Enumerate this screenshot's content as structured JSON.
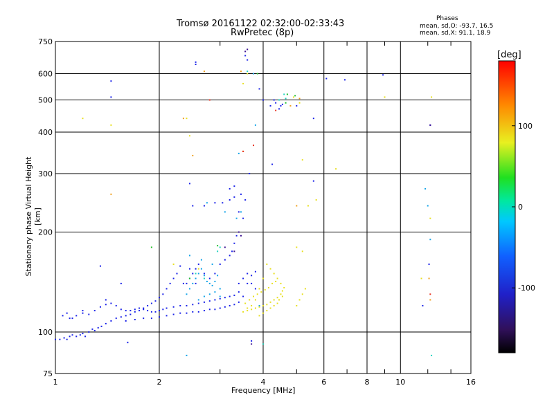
{
  "header": {
    "title_line1": "Tromsø 20161122 02:32:00-02:33:43",
    "title_line2": "RwPretec (8p)"
  },
  "phases": {
    "title": "Phases",
    "o_line": "mean, sd,O: -93.7, 16.5",
    "x_line": "mean, sd,X:  91.1, 18.9"
  },
  "colorbar": {
    "label": "[deg]",
    "ticks": [
      "100",
      "0",
      "-100"
    ],
    "tick_values": [
      100,
      0,
      -100
    ],
    "range": [
      -180,
      180
    ]
  },
  "chart_data": {
    "type": "scatter",
    "title": "Tromsø 20161122 02:32:00-02:33:43",
    "subtitle": "RwPretec (8p)",
    "xlabel": "Frequency [MHz]",
    "ylabel": "Stationary phase Virtual Height [km]",
    "x_scale": "log",
    "y_scale": "log",
    "xlim": [
      1,
      16
    ],
    "ylim": [
      75,
      750
    ],
    "x_ticks": [
      1,
      2,
      4,
      6,
      8,
      10,
      16
    ],
    "x_tick_labels": [
      "1",
      "2",
      "4",
      "6",
      "8",
      "10",
      "16"
    ],
    "y_ticks": [
      75,
      100,
      200,
      300,
      400,
      500,
      600,
      750
    ],
    "y_tick_labels": [
      "75",
      "100",
      "200",
      "300",
      "400",
      "500",
      "600",
      "750"
    ],
    "grid": true,
    "series": [
      {
        "color": "#1a22e8",
        "points": [
          [
            1.0,
            95
          ],
          [
            1.03,
            95
          ],
          [
            1.06,
            96
          ],
          [
            1.08,
            95
          ],
          [
            1.1,
            97
          ],
          [
            1.12,
            98
          ],
          [
            1.15,
            97
          ],
          [
            1.18,
            98
          ],
          [
            1.2,
            99
          ],
          [
            1.22,
            97
          ],
          [
            1.25,
            100
          ],
          [
            1.28,
            102
          ],
          [
            1.3,
            101
          ],
          [
            1.33,
            103
          ],
          [
            1.36,
            104
          ],
          [
            1.4,
            106
          ],
          [
            1.45,
            108
          ],
          [
            1.5,
            110
          ],
          [
            1.55,
            111
          ],
          [
            1.6,
            112
          ],
          [
            1.65,
            113
          ],
          [
            1.7,
            115
          ],
          [
            1.75,
            116
          ],
          [
            1.8,
            118
          ],
          [
            1.85,
            120
          ],
          [
            1.9,
            122
          ],
          [
            1.95,
            124
          ],
          [
            2.0,
            127
          ],
          [
            2.05,
            130
          ],
          [
            2.1,
            135
          ],
          [
            2.15,
            140
          ],
          [
            2.2,
            145
          ],
          [
            2.25,
            150
          ],
          [
            2.3,
            158
          ],
          [
            1.1,
            110
          ],
          [
            1.15,
            112
          ],
          [
            1.2,
            114
          ],
          [
            1.25,
            113
          ],
          [
            1.3,
            116
          ],
          [
            1.35,
            119
          ],
          [
            1.4,
            121
          ],
          [
            1.45,
            122
          ],
          [
            1.5,
            120
          ],
          [
            1.55,
            117
          ],
          [
            1.6,
            116
          ],
          [
            1.65,
            116
          ],
          [
            1.7,
            117
          ],
          [
            1.75,
            118
          ],
          [
            1.8,
            117
          ],
          [
            1.85,
            116
          ],
          [
            1.9,
            115
          ],
          [
            1.95,
            115
          ],
          [
            2.0,
            116
          ],
          [
            2.05,
            117
          ],
          [
            2.1,
            118
          ],
          [
            2.2,
            119
          ],
          [
            2.3,
            120
          ],
          [
            2.4,
            120
          ],
          [
            2.5,
            121
          ],
          [
            2.6,
            122
          ],
          [
            2.7,
            123
          ],
          [
            2.8,
            124
          ],
          [
            2.9,
            125
          ],
          [
            3.0,
            126
          ],
          [
            3.1,
            127
          ],
          [
            3.2,
            128
          ],
          [
            3.3,
            129
          ],
          [
            3.4,
            132
          ],
          [
            1.6,
            108
          ],
          [
            1.7,
            109
          ],
          [
            1.8,
            110
          ],
          [
            1.9,
            110
          ],
          [
            2.0,
            111
          ],
          [
            2.1,
            112
          ],
          [
            2.2,
            113
          ],
          [
            2.3,
            114
          ],
          [
            2.4,
            114
          ],
          [
            2.5,
            115
          ],
          [
            2.6,
            115
          ],
          [
            2.7,
            116
          ],
          [
            2.8,
            117
          ],
          [
            2.9,
            117
          ],
          [
            3.0,
            118
          ],
          [
            3.1,
            119
          ],
          [
            3.2,
            120
          ],
          [
            3.3,
            121
          ],
          [
            3.4,
            123
          ],
          [
            3.5,
            128
          ],
          [
            2.4,
            140
          ],
          [
            2.45,
            145
          ],
          [
            2.5,
            150
          ],
          [
            2.55,
            155
          ],
          [
            2.6,
            160
          ],
          [
            2.7,
            150
          ],
          [
            2.8,
            145
          ],
          [
            2.9,
            150
          ],
          [
            3.0,
            160
          ],
          [
            3.1,
            165
          ],
          [
            3.2,
            170
          ],
          [
            3.25,
            175
          ],
          [
            3.3,
            185
          ],
          [
            3.35,
            195
          ],
          [
            3.4,
            140
          ],
          [
            3.5,
            145
          ],
          [
            3.6,
            150
          ],
          [
            3.7,
            148
          ],
          [
            3.8,
            152
          ],
          [
            2.5,
            240
          ],
          [
            2.7,
            240
          ],
          [
            2.9,
            245
          ],
          [
            3.05,
            245
          ],
          [
            3.2,
            250
          ],
          [
            3.3,
            255
          ],
          [
            3.4,
            230
          ],
          [
            3.5,
            220
          ],
          [
            3.45,
            260
          ],
          [
            3.55,
            250
          ],
          [
            3.2,
            270
          ],
          [
            3.3,
            275
          ],
          [
            1.05,
            112
          ],
          [
            1.08,
            114
          ],
          [
            1.12,
            110
          ],
          [
            1.2,
            116
          ],
          [
            1.4,
            125
          ],
          [
            1.55,
            140
          ],
          [
            2.35,
            140
          ],
          [
            2.45,
            155
          ],
          [
            2.55,
            140
          ],
          [
            3.6,
            140
          ],
          [
            3.7,
            140
          ],
          [
            3.8,
            135
          ],
          [
            4.2,
            480
          ],
          [
            4.35,
            490
          ],
          [
            4.45,
            470
          ],
          [
            4.5,
            480
          ],
          [
            4.3,
            500
          ],
          [
            4.55,
            485
          ],
          [
            2.55,
            640
          ],
          [
            2.55,
            650
          ],
          [
            3.55,
            680
          ],
          [
            3.6,
            660
          ],
          [
            3.9,
            540
          ],
          [
            4.0,
            500
          ],
          [
            5.0,
            480
          ],
          [
            5.6,
            440
          ],
          [
            6.1,
            580
          ],
          [
            6.9,
            575
          ],
          [
            8.9,
            595
          ],
          [
            12.2,
            420
          ],
          [
            1.45,
            570
          ],
          [
            1.45,
            510
          ],
          [
            2.45,
            280
          ],
          [
            3.65,
            300
          ],
          [
            4.25,
            320
          ],
          [
            5.6,
            285
          ],
          [
            1.35,
            158
          ],
          [
            11.6,
            120
          ],
          [
            12.1,
            160
          ],
          [
            1.62,
            93
          ],
          [
            3.7,
            94
          ]
        ]
      },
      {
        "color": "#14a4e8",
        "points": [
          [
            2.4,
            130
          ],
          [
            2.45,
            135
          ],
          [
            2.5,
            140
          ],
          [
            2.55,
            145
          ],
          [
            2.6,
            150
          ],
          [
            2.65,
            155
          ],
          [
            2.7,
            148
          ],
          [
            2.75,
            142
          ],
          [
            2.8,
            140
          ],
          [
            2.85,
            138
          ],
          [
            2.9,
            142
          ],
          [
            2.95,
            148
          ],
          [
            3.0,
            135
          ],
          [
            2.6,
            125
          ],
          [
            2.7,
            128
          ],
          [
            2.8,
            130
          ],
          [
            2.9,
            132
          ],
          [
            3.0,
            128
          ],
          [
            2.45,
            170
          ],
          [
            2.65,
            165
          ],
          [
            2.85,
            160
          ],
          [
            2.75,
            245
          ],
          [
            3.1,
            230
          ],
          [
            3.35,
            220
          ],
          [
            3.45,
            230
          ],
          [
            3.8,
            420
          ],
          [
            3.75,
            600
          ],
          [
            12.0,
            240
          ],
          [
            11.8,
            270
          ],
          [
            12.2,
            190
          ],
          [
            2.4,
            85
          ],
          [
            3.9,
            120
          ],
          [
            3.4,
            345
          ]
        ]
      },
      {
        "color": "#22d4c0",
        "points": [
          [
            2.95,
            175
          ],
          [
            3.0,
            180
          ],
          [
            2.55,
            150
          ],
          [
            2.7,
            145
          ],
          [
            4.45,
            500
          ],
          [
            4.6,
            520
          ],
          [
            4.65,
            505
          ],
          [
            4.0,
            92
          ],
          [
            12.3,
            85
          ],
          [
            3.6,
            610
          ]
        ]
      },
      {
        "color": "#e8e020",
        "points": [
          [
            3.5,
            115
          ],
          [
            3.6,
            116
          ],
          [
            3.7,
            117
          ],
          [
            3.8,
            118
          ],
          [
            3.9,
            119
          ],
          [
            4.0,
            120
          ],
          [
            4.1,
            121
          ],
          [
            4.2,
            123
          ],
          [
            4.3,
            125
          ],
          [
            4.4,
            127
          ],
          [
            4.5,
            130
          ],
          [
            4.55,
            133
          ],
          [
            4.6,
            136
          ],
          [
            4.5,
            140
          ],
          [
            4.4,
            145
          ],
          [
            4.3,
            150
          ],
          [
            4.2,
            155
          ],
          [
            4.1,
            160
          ],
          [
            4.0,
            145
          ],
          [
            3.9,
            135
          ],
          [
            3.8,
            125
          ],
          [
            3.7,
            120
          ],
          [
            3.6,
            118
          ],
          [
            3.9,
            112
          ],
          [
            4.0,
            114
          ],
          [
            4.1,
            116
          ],
          [
            4.2,
            118
          ],
          [
            4.3,
            120
          ],
          [
            4.4,
            122
          ],
          [
            3.55,
            122
          ],
          [
            3.65,
            125
          ],
          [
            3.75,
            128
          ],
          [
            3.85,
            130
          ],
          [
            3.95,
            132
          ],
          [
            4.05,
            134
          ],
          [
            4.15,
            136
          ],
          [
            4.25,
            140
          ],
          [
            4.35,
            142
          ],
          [
            4.45,
            125
          ],
          [
            4.55,
            128
          ],
          [
            5.0,
            120
          ],
          [
            5.1,
            125
          ],
          [
            5.2,
            130
          ],
          [
            5.3,
            135
          ],
          [
            5.0,
            180
          ],
          [
            5.2,
            175
          ],
          [
            4.9,
            510
          ],
          [
            5.1,
            490
          ],
          [
            5.4,
            240
          ],
          [
            5.7,
            250
          ],
          [
            6.5,
            310
          ],
          [
            5.2,
            330
          ],
          [
            12.3,
            510
          ],
          [
            9.0,
            510
          ],
          [
            12.2,
            220
          ],
          [
            11.5,
            145
          ],
          [
            2.45,
            390
          ],
          [
            2.4,
            440
          ],
          [
            3.5,
            560
          ],
          [
            3.6,
            600
          ],
          [
            1.2,
            440
          ],
          [
            1.45,
            420
          ],
          [
            1.9,
            180
          ],
          [
            2.2,
            160
          ],
          [
            2.6,
            155
          ]
        ]
      },
      {
        "color": "#f0a020",
        "points": [
          [
            5.0,
            240
          ],
          [
            5.1,
            505
          ],
          [
            4.8,
            480
          ],
          [
            3.5,
            350
          ],
          [
            3.45,
            610
          ],
          [
            12.1,
            145
          ],
          [
            2.7,
            610
          ],
          [
            12.2,
            125
          ],
          [
            1.45,
            260
          ],
          [
            2.35,
            440
          ],
          [
            2.5,
            340
          ]
        ]
      },
      {
        "color": "#e83020",
        "points": [
          [
            3.5,
            350
          ],
          [
            4.35,
            465
          ],
          [
            3.75,
            365
          ],
          [
            2.8,
            500
          ],
          [
            12.2,
            130
          ]
        ]
      },
      {
        "color": "#20c030",
        "points": [
          [
            4.7,
            520
          ],
          [
            4.65,
            490
          ],
          [
            2.45,
            145
          ],
          [
            2.95,
            182
          ],
          [
            1.9,
            180
          ],
          [
            3.85,
            600
          ],
          [
            4.95,
            515
          ]
        ]
      },
      {
        "color": "#3a1090",
        "points": [
          [
            3.55,
            700
          ],
          [
            3.6,
            710
          ],
          [
            3.1,
            180
          ],
          [
            3.3,
            175
          ],
          [
            3.4,
            200
          ],
          [
            3.45,
            195
          ],
          [
            12.2,
            420
          ],
          [
            3.7,
            92
          ]
        ]
      }
    ]
  }
}
